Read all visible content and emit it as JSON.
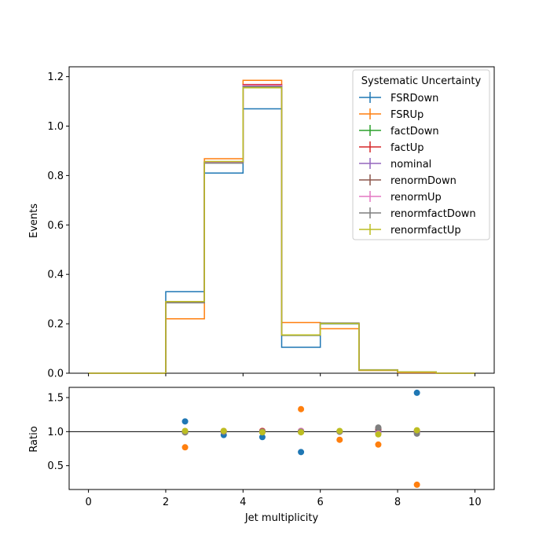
{
  "chart_data": {
    "type": "line",
    "subtype": "step-histogram-with-ratio",
    "x_bin_edges": [
      0,
      1,
      2,
      3,
      4,
      5,
      6,
      7,
      8,
      9,
      10
    ],
    "bin_centers": [
      2.5,
      3.5,
      4.5,
      5.5,
      6.5,
      7.5,
      8.5
    ],
    "xlabel": "Jet multiplicity",
    "xlim": [
      -0.5,
      10.5
    ],
    "x_ticks": [
      "0",
      "2",
      "4",
      "6",
      "8",
      "10"
    ],
    "top_panel": {
      "ylabel": "Events",
      "ylim": [
        0,
        1.24
      ],
      "y_ticks": [
        "0.0",
        "0.2",
        "0.4",
        "0.6",
        "0.8",
        "1.0",
        "1.2"
      ],
      "legend_title": "Systematic Uncertainty",
      "legend_position": "top-right"
    },
    "bottom_panel": {
      "ylabel": "Ratio",
      "ylim": [
        0.15,
        1.65
      ],
      "y_ticks": [
        "0.5",
        "1.0",
        "1.5"
      ],
      "reference_line": 1.0
    },
    "series": [
      {
        "name": "FSRDown",
        "color": "#1f77b4",
        "values": [
          0,
          0,
          0.33,
          0.81,
          1.07,
          0.105,
          0.2,
          0.012,
          0.004,
          0
        ],
        "ratio": [
          1.15,
          0.95,
          0.92,
          0.7,
          1.0,
          1.03,
          1.57
        ]
      },
      {
        "name": "FSRUp",
        "color": "#ff7f0e",
        "values": [
          0,
          0,
          0.22,
          0.868,
          1.185,
          0.205,
          0.18,
          0.011,
          0.002,
          0
        ],
        "ratio": [
          0.77,
          1.01,
          1.01,
          1.33,
          0.88,
          0.81,
          0.22
        ]
      },
      {
        "name": "factDown",
        "color": "#2ca02c",
        "values": [
          0,
          0,
          0.287,
          0.853,
          1.16,
          0.153,
          0.203,
          0.013,
          0.005,
          0
        ],
        "ratio": [
          1.0,
          1.0,
          1.0,
          1.0,
          1.0,
          0.98,
          1.0
        ]
      },
      {
        "name": "factUp",
        "color": "#d62728",
        "values": [
          0,
          0,
          0.288,
          0.856,
          1.168,
          0.155,
          0.202,
          0.0135,
          0.005,
          0
        ],
        "ratio": [
          1.0,
          1.0,
          1.01,
          1.01,
          1.0,
          1.03,
          1.01
        ]
      },
      {
        "name": "nominal",
        "color": "#9467bd",
        "values": [
          0,
          0,
          0.287,
          0.853,
          1.164,
          0.154,
          0.201,
          0.013,
          0.005,
          0
        ],
        "ratio": [
          1.0,
          1.0,
          1.0,
          1.0,
          1.0,
          1.0,
          1.0
        ]
      },
      {
        "name": "renormDown",
        "color": "#8c564b",
        "values": [
          0,
          0,
          0.286,
          0.852,
          1.163,
          0.154,
          0.201,
          0.0135,
          0.005,
          0
        ],
        "ratio": [
          0.99,
          1.0,
          1.0,
          1.0,
          1.0,
          1.05,
          0.99
        ]
      },
      {
        "name": "renormUp",
        "color": "#e377c2",
        "values": [
          0,
          0,
          0.288,
          0.855,
          1.165,
          0.155,
          0.202,
          0.013,
          0.005,
          0
        ],
        "ratio": [
          1.0,
          1.0,
          1.0,
          1.01,
          1.0,
          0.97,
          1.0
        ]
      },
      {
        "name": "renormfactDown",
        "color": "#7f7f7f",
        "values": [
          0,
          0,
          0.285,
          0.85,
          1.16,
          0.154,
          0.202,
          0.0138,
          0.005,
          0
        ],
        "ratio": [
          0.99,
          1.0,
          1.0,
          1.0,
          1.0,
          1.06,
          0.97
        ]
      },
      {
        "name": "renormfactUp",
        "color": "#bcbd22",
        "values": [
          0,
          0,
          0.29,
          0.857,
          1.155,
          0.155,
          0.201,
          0.0128,
          0.005,
          0
        ],
        "ratio": [
          1.01,
          1.01,
          0.99,
          0.99,
          1.01,
          0.96,
          1.02
        ]
      }
    ]
  }
}
